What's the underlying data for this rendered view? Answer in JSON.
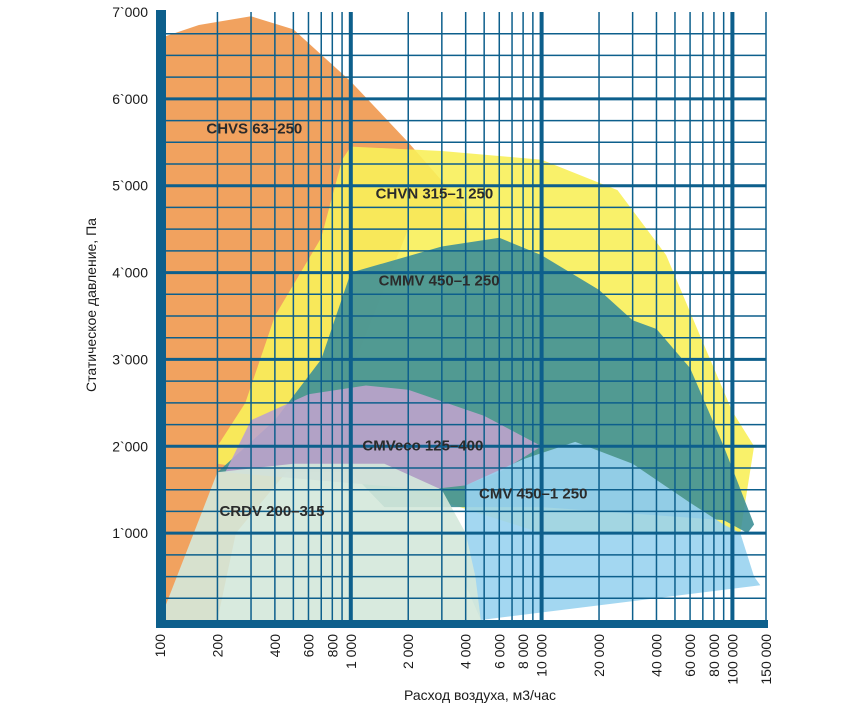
{
  "chart_data": {
    "type": "area",
    "x_scale": "log",
    "xlabel": "Расход воздуха, м3/час",
    "ylabel": "Статическое давление, Па",
    "xlim": [
      100,
      150000
    ],
    "ylim": [
      0,
      7000
    ],
    "grid": true,
    "x_ticks": [
      {
        "value": 100,
        "label": "100"
      },
      {
        "value": 200,
        "label": "200"
      },
      {
        "value": 400,
        "label": "400"
      },
      {
        "value": 600,
        "label": "600"
      },
      {
        "value": 800,
        "label": "800"
      },
      {
        "value": 1000,
        "label": "1 000"
      },
      {
        "value": 2000,
        "label": "2 000"
      },
      {
        "value": 4000,
        "label": "4 000"
      },
      {
        "value": 6000,
        "label": "6 000"
      },
      {
        "value": 8000,
        "label": "8 000"
      },
      {
        "value": 10000,
        "label": "10 000"
      },
      {
        "value": 20000,
        "label": "20 000"
      },
      {
        "value": 40000,
        "label": "40 000"
      },
      {
        "value": 60000,
        "label": "60 000"
      },
      {
        "value": 80000,
        "label": "80 000"
      },
      {
        "value": 100000,
        "label": "100 000"
      },
      {
        "value": 150000,
        "label": "150 000"
      }
    ],
    "y_ticks": [
      {
        "value": 1000,
        "label": "1`000"
      },
      {
        "value": 2000,
        "label": "2`000"
      },
      {
        "value": 3000,
        "label": "3`000"
      },
      {
        "value": 4000,
        "label": "4`000"
      },
      {
        "value": 5000,
        "label": "5`000"
      },
      {
        "value": 6000,
        "label": "6`000"
      },
      {
        "value": 7000,
        "label": "7`000"
      }
    ],
    "series": [
      {
        "name": "CHVS 63–250",
        "color": "#f0984e",
        "label_at": [
          175,
          5600
        ],
        "points": [
          [
            100,
            0
          ],
          [
            100,
            6700
          ],
          [
            160,
            6850
          ],
          [
            300,
            6950
          ],
          [
            500,
            6800
          ],
          [
            1000,
            6200
          ],
          [
            2000,
            5500
          ],
          [
            3800,
            4800
          ],
          [
            4200,
            4500
          ],
          [
            2000,
            4500
          ],
          [
            900,
            2600
          ],
          [
            500,
            1800
          ],
          [
            250,
            1000
          ],
          [
            200,
            0
          ]
        ]
      },
      {
        "name": "CHVN 315–1 250",
        "color": "#f8ef5a",
        "label_at": [
          1350,
          4850
        ],
        "points": [
          [
            200,
            2000
          ],
          [
            280,
            2500
          ],
          [
            400,
            3500
          ],
          [
            700,
            4400
          ],
          [
            900,
            5300
          ],
          [
            1000,
            5450
          ],
          [
            3000,
            5400
          ],
          [
            10000,
            5300
          ],
          [
            25000,
            4950
          ],
          [
            45000,
            4200
          ],
          [
            70000,
            3200
          ],
          [
            100000,
            2400
          ],
          [
            130000,
            2000
          ],
          [
            110000,
            1000
          ],
          [
            10000,
            1000
          ],
          [
            1000,
            1700
          ],
          [
            400,
            1700
          ],
          [
            200,
            1800
          ]
        ]
      },
      {
        "name": "CMMV 450–1 250",
        "color": "#3e9097",
        "label_at": [
          1400,
          3850
        ],
        "points": [
          [
            200,
            1700
          ],
          [
            400,
            2300
          ],
          [
            700,
            3000
          ],
          [
            1000,
            4000
          ],
          [
            3000,
            4300
          ],
          [
            6000,
            4400
          ],
          [
            10000,
            4200
          ],
          [
            20000,
            3800
          ],
          [
            30000,
            3450
          ],
          [
            40000,
            3350
          ],
          [
            60000,
            2900
          ],
          [
            90000,
            2000
          ],
          [
            130000,
            1100
          ],
          [
            120000,
            1000
          ],
          [
            90000,
            1150
          ],
          [
            10000,
            1300
          ],
          [
            1500,
            1300
          ],
          [
            1000,
            1700
          ],
          [
            400,
            1700
          ],
          [
            250,
            1700
          ]
        ]
      },
      {
        "name": "CMVeco 125–400",
        "color": "#bca3cc",
        "label_at": [
          1150,
          1950
        ],
        "points": [
          [
            220,
            1700
          ],
          [
            300,
            2300
          ],
          [
            600,
            2600
          ],
          [
            1200,
            2700
          ],
          [
            2000,
            2650
          ],
          [
            5000,
            2350
          ],
          [
            10000,
            2000
          ],
          [
            6000,
            1700
          ],
          [
            4000,
            1550
          ],
          [
            2500,
            1500
          ],
          [
            220,
            1700
          ]
        ]
      },
      {
        "name": "CMV 450–1 250",
        "color": "#99d3f0",
        "label_at": [
          4700,
          1400
        ],
        "points": [
          [
            4000,
            1550
          ],
          [
            8000,
            1850
          ],
          [
            15000,
            2050
          ],
          [
            30000,
            1800
          ],
          [
            60000,
            1350
          ],
          [
            90000,
            1100
          ],
          [
            110000,
            1000
          ],
          [
            130000,
            500
          ],
          [
            140000,
            400
          ],
          [
            4800,
            0
          ],
          [
            4000,
            400
          ]
        ]
      },
      {
        "name": "CRDV 200–315",
        "color": "#d4e8da",
        "label_at": [
          205,
          1200
        ],
        "points": [
          [
            100,
            0
          ],
          [
            200,
            1700
          ],
          [
            500,
            1800
          ],
          [
            1500,
            1800
          ],
          [
            3000,
            1500
          ],
          [
            4000,
            1000
          ],
          [
            4500,
            500
          ],
          [
            4800,
            0
          ]
        ]
      }
    ]
  }
}
